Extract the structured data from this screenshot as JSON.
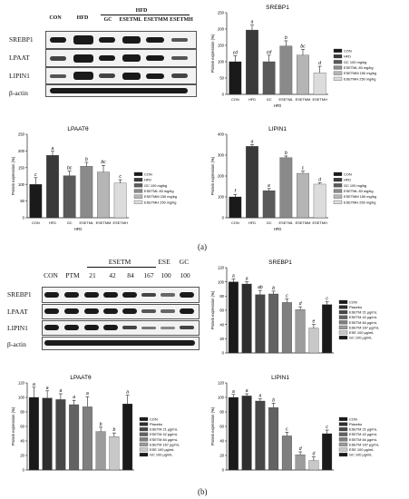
{
  "panel_tags": [
    "(a)",
    "(b)"
  ],
  "blot_a": {
    "proteins": [
      "SREBP1",
      "LPAAT",
      "LIPIN1",
      "β-actin"
    ],
    "lanes": [
      "CON",
      "HFD",
      "GC",
      "ESETML",
      "ESETMM",
      "ESETMH"
    ],
    "group_label": "HFD"
  },
  "blot_b": {
    "proteins": [
      "SREBP1",
      "LPAAT",
      "LIPIN1",
      "β-actin"
    ],
    "lanes": [
      "CON",
      "PTM",
      "21",
      "42",
      "84",
      "167",
      "100",
      "100"
    ],
    "group_labels": [
      "ESETM",
      "ESE",
      "GC"
    ]
  },
  "chart_data": [
    {
      "type": "bar",
      "title": "SREBP1",
      "ylabel": "Protein expression (%)",
      "xlabel": "HFD",
      "categories": [
        "CON",
        "HFD",
        "GC",
        "ESETML",
        "ESETMM",
        "ESETMH"
      ],
      "values": [
        100,
        197,
        100,
        148,
        120,
        66
      ],
      "errors": [
        18,
        15,
        20,
        16,
        18,
        20
      ],
      "letters": [
        "cd",
        "a",
        "cd",
        "b",
        "bc",
        "d"
      ],
      "ylim": [
        0,
        250
      ],
      "yticks": [
        0,
        50,
        100,
        150,
        200,
        250
      ],
      "colors": [
        "#1a1a1a",
        "#3a3a3a",
        "#5a5a5a",
        "#8a8a8a",
        "#b5b5b5",
        "#dcdcdc"
      ],
      "legend": [
        "CON",
        "HFD",
        "GC 100 mg/kg",
        "ESETML 83 mg/kg",
        "ESETMM 150 mg/kg",
        "ESETMH 250 mg/kg"
      ]
    },
    {
      "type": "bar",
      "title": "LPAATθ",
      "ylabel": "Protein expression (%)",
      "xlabel": "HFD",
      "categories": [
        "CON",
        "HFD",
        "GC",
        "ESETML",
        "ESETMM",
        "ESETMH"
      ],
      "values": [
        100,
        187,
        126,
        154,
        137,
        104
      ],
      "errors": [
        20,
        12,
        14,
        12,
        20,
        10
      ],
      "letters": [
        "c",
        "a",
        "bc",
        "b",
        "bc",
        "c"
      ],
      "ylim": [
        0,
        250
      ],
      "yticks": [
        0,
        50,
        100,
        150,
        200,
        250
      ],
      "colors": [
        "#1a1a1a",
        "#3a3a3a",
        "#5a5a5a",
        "#8a8a8a",
        "#b5b5b5",
        "#dcdcdc"
      ],
      "legend": [
        "CON",
        "HFD",
        "GC 100 mg/kg",
        "ESETML 83 mg/kg",
        "ESETMM 150 mg/kg",
        "ESETMH 250 mg/kg"
      ]
    },
    {
      "type": "bar",
      "title": "LIPIN1",
      "ylabel": "Protein expression (%)",
      "xlabel": "HFD",
      "categories": [
        "CON",
        "HFD",
        "GC",
        "ESETML",
        "ESETMM",
        "ESETMH"
      ],
      "values": [
        100,
        342,
        130,
        288,
        213,
        161
      ],
      "errors": [
        12,
        8,
        10,
        8,
        10,
        6
      ],
      "letters": [
        "f",
        "a",
        "e",
        "b",
        "c",
        "d"
      ],
      "ylim": [
        0,
        400
      ],
      "yticks": [
        0,
        100,
        200,
        300,
        400
      ],
      "colors": [
        "#1a1a1a",
        "#3a3a3a",
        "#5a5a5a",
        "#8a8a8a",
        "#b5b5b5",
        "#dcdcdc"
      ],
      "legend": [
        "CON",
        "HFD",
        "GC 100 mg/kg",
        "ESETML 83 mg/kg",
        "ESETMM 150 mg/kg",
        "ESETMH 250 mg/kg"
      ]
    },
    {
      "type": "bar",
      "title": "SREBP1",
      "ylabel": "Protein expression (%)",
      "categories": [
        "CON",
        "Placebo",
        "ESETM 21",
        "ESETM 42",
        "ESETM 84",
        "ESETM 167",
        "ESE 100",
        "GC 100"
      ],
      "values": [
        100,
        97,
        82,
        83,
        71,
        61,
        35,
        68
      ],
      "errors": [
        4,
        3,
        6,
        4,
        5,
        4,
        5,
        4
      ],
      "letters": [
        "a",
        "a",
        "ab",
        "b",
        "c",
        "d",
        "e",
        "c"
      ],
      "ylim": [
        0,
        120
      ],
      "yticks": [
        0,
        20,
        40,
        60,
        80,
        100,
        120
      ],
      "colors": [
        "#1a1a1a",
        "#2e2e2e",
        "#474747",
        "#626262",
        "#7f7f7f",
        "#9c9c9c",
        "#c8c8c8",
        "#1a1a1a"
      ],
      "legend": [
        "CON",
        "Placebo",
        "ESETM 21 μg/mL",
        "ESETM 42 μg/mL",
        "ESETM 84 μg/mL",
        "ESETM 167 μg/mL",
        "ESE 100 μg/mL",
        "GC 100 μg/mL"
      ]
    },
    {
      "type": "bar",
      "title": "LPAATθ",
      "ylabel": "Protein expression (%)",
      "categories": [
        "CON",
        "Placebo",
        "ESETM 21",
        "ESETM 42",
        "ESETM 84",
        "ESETM 167",
        "ESE 100",
        "GC 100"
      ],
      "values": [
        100,
        99,
        97,
        90,
        87,
        53,
        46,
        91
      ],
      "errors": [
        14,
        10,
        8,
        6,
        14,
        6,
        5,
        12
      ],
      "letters": [
        "a",
        "a",
        "a",
        "a",
        "a",
        "b",
        "b",
        "a"
      ],
      "ylim": [
        0,
        120
      ],
      "yticks": [
        0,
        20,
        40,
        60,
        80,
        100,
        120
      ],
      "colors": [
        "#1a1a1a",
        "#2e2e2e",
        "#474747",
        "#626262",
        "#7f7f7f",
        "#9c9c9c",
        "#c8c8c8",
        "#1a1a1a"
      ],
      "legend": [
        "CON",
        "Placebo",
        "ESETM 21 μg/mL",
        "ESETM 42 μg/mL",
        "ESETM 84 μg/mL",
        "ESETM 167 μg/mL",
        "ESE 100 μg/mL",
        "GC 100 μg/mL"
      ]
    },
    {
      "type": "bar",
      "title": "LIPIN1",
      "ylabel": "Protein expression (%)",
      "categories": [
        "CON",
        "Placebo",
        "ESETM 21",
        "ESETM 42",
        "ESETM 84",
        "ESETM 167",
        "ESE 100",
        "GC 100"
      ],
      "values": [
        100,
        102,
        95,
        86,
        47,
        21,
        13,
        50
      ],
      "errors": [
        4,
        3,
        3,
        6,
        5,
        4,
        5,
        5
      ],
      "letters": [
        "a",
        "a",
        "a",
        "b",
        "c",
        "d",
        "d",
        "c"
      ],
      "ylim": [
        0,
        120
      ],
      "yticks": [
        0,
        20,
        40,
        60,
        80,
        100,
        120
      ],
      "colors": [
        "#1a1a1a",
        "#2e2e2e",
        "#474747",
        "#626262",
        "#7f7f7f",
        "#9c9c9c",
        "#c8c8c8",
        "#1a1a1a"
      ],
      "legend": [
        "CON",
        "Placebo",
        "ESETM 21 μg/mL",
        "ESETM 42 μg/mL",
        "ESETM 84 μg/mL",
        "ESETM 167 μg/mL",
        "ESE 100 μg/mL",
        "GC 100 μg/mL"
      ]
    }
  ]
}
